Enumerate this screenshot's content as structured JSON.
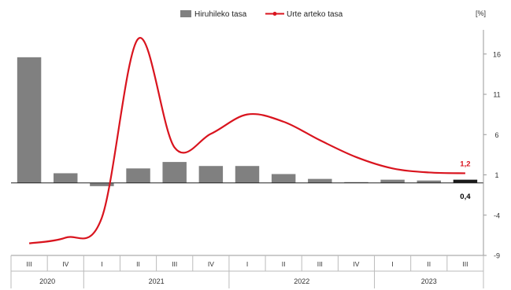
{
  "chart_data": {
    "type": "bar",
    "unit_label": "[%]",
    "legend": {
      "placement": "top-center",
      "items": [
        {
          "label": "Hiruhileko tasa",
          "kind": "bar",
          "color": "#808080"
        },
        {
          "label": "Urte arteko tasa",
          "kind": "line",
          "color": "#d9141e"
        }
      ]
    },
    "quarters": [
      "III",
      "IV",
      "I",
      "II",
      "III",
      "IV",
      "I",
      "II",
      "III",
      "IV",
      "I",
      "II",
      "III"
    ],
    "years": [
      {
        "label": "2020",
        "start": 0,
        "end": 1
      },
      {
        "label": "2021",
        "start": 2,
        "end": 5
      },
      {
        "label": "2022",
        "start": 6,
        "end": 9
      },
      {
        "label": "2023",
        "start": 10,
        "end": 12
      }
    ],
    "ylim": [
      -9,
      19
    ],
    "yticks": [
      16,
      11,
      6,
      1,
      -4,
      -9
    ],
    "grid": false,
    "series": [
      {
        "name": "Hiruhileko tasa",
        "kind": "bar",
        "values": [
          15.6,
          1.2,
          -0.4,
          1.8,
          2.6,
          2.1,
          2.1,
          1.1,
          0.5,
          0.1,
          0.4,
          0.3,
          0.4
        ],
        "colors": [
          "#808080",
          "#808080",
          "#808080",
          "#808080",
          "#808080",
          "#808080",
          "#808080",
          "#808080",
          "#808080",
          "#808080",
          "#808080",
          "#808080",
          "#1a1a1a"
        ]
      },
      {
        "name": "Urte arteko tasa",
        "kind": "line",
        "color": "#d9141e",
        "values": [
          -7.5,
          -6.8,
          -4.3,
          17.9,
          4.4,
          6.1,
          8.5,
          7.6,
          5.3,
          3.2,
          1.8,
          1.3,
          1.2
        ]
      }
    ],
    "annotations": [
      {
        "text": "1,2",
        "series": 1,
        "index": 12,
        "position": "above",
        "color": "#d9141e"
      },
      {
        "text": "0,4",
        "series": 0,
        "index": 12,
        "position": "below",
        "color": "#000000"
      }
    ]
  }
}
